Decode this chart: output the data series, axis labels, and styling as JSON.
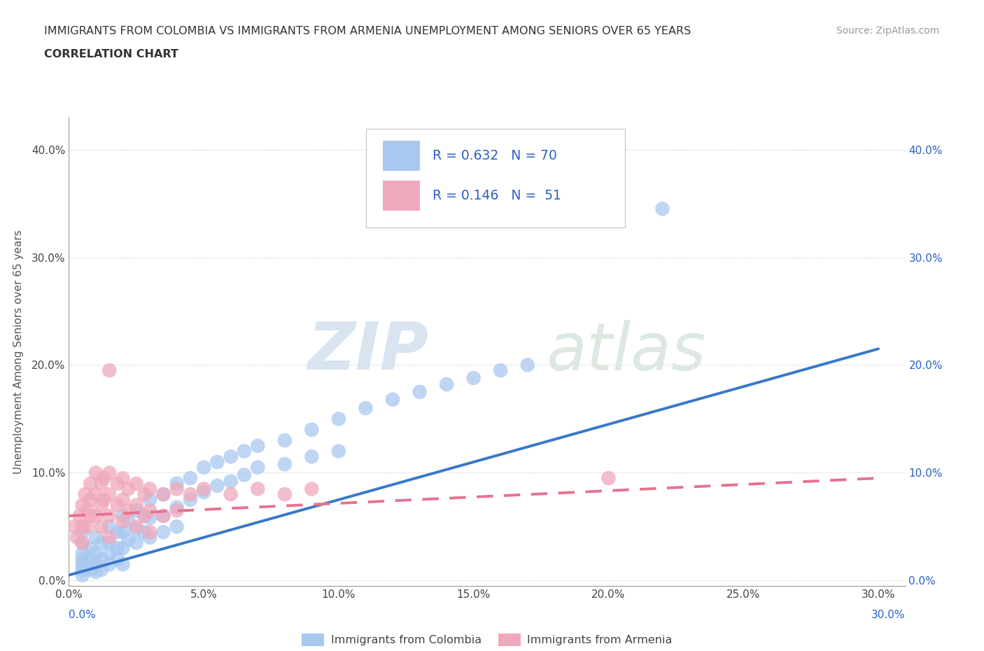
{
  "title_line1": "IMMIGRANTS FROM COLOMBIA VS IMMIGRANTS FROM ARMENIA UNEMPLOYMENT AMONG SENIORS OVER 65 YEARS",
  "title_line2": "CORRELATION CHART",
  "source": "Source: ZipAtlas.com",
  "ylabel": "Unemployment Among Seniors over 65 years",
  "xlim": [
    0.0,
    0.31
  ],
  "ylim": [
    -0.005,
    0.43
  ],
  "xticks": [
    0.0,
    0.05,
    0.1,
    0.15,
    0.2,
    0.25,
    0.3
  ],
  "yticks": [
    0.0,
    0.1,
    0.2,
    0.3,
    0.4
  ],
  "colombia_R": 0.632,
  "colombia_N": 70,
  "armenia_R": 0.146,
  "armenia_N": 51,
  "colombia_color": "#a8c8f0",
  "armenia_color": "#f0a8bc",
  "colombia_line_color": "#3878c8",
  "armenia_line_color": "#e87090",
  "text_color": "#2860c8",
  "watermark_zip": "ZIP",
  "watermark_atlas": "atlas",
  "legend_label_colombia": "Immigrants from Colombia",
  "legend_label_armenia": "Immigrants from Armenia",
  "colombia_scatter": [
    [
      0.005,
      0.045
    ],
    [
      0.005,
      0.035
    ],
    [
      0.005,
      0.025
    ],
    [
      0.005,
      0.02
    ],
    [
      0.005,
      0.015
    ],
    [
      0.005,
      0.01
    ],
    [
      0.005,
      0.005
    ],
    [
      0.008,
      0.03
    ],
    [
      0.008,
      0.02
    ],
    [
      0.008,
      0.01
    ],
    [
      0.01,
      0.04
    ],
    [
      0.01,
      0.025
    ],
    [
      0.01,
      0.015
    ],
    [
      0.01,
      0.008
    ],
    [
      0.012,
      0.035
    ],
    [
      0.012,
      0.02
    ],
    [
      0.012,
      0.01
    ],
    [
      0.015,
      0.05
    ],
    [
      0.015,
      0.035
    ],
    [
      0.015,
      0.025
    ],
    [
      0.015,
      0.015
    ],
    [
      0.018,
      0.045
    ],
    [
      0.018,
      0.03
    ],
    [
      0.018,
      0.02
    ],
    [
      0.02,
      0.06
    ],
    [
      0.02,
      0.045
    ],
    [
      0.02,
      0.03
    ],
    [
      0.02,
      0.015
    ],
    [
      0.022,
      0.055
    ],
    [
      0.022,
      0.038
    ],
    [
      0.025,
      0.065
    ],
    [
      0.025,
      0.048
    ],
    [
      0.025,
      0.035
    ],
    [
      0.028,
      0.06
    ],
    [
      0.028,
      0.045
    ],
    [
      0.03,
      0.075
    ],
    [
      0.03,
      0.058
    ],
    [
      0.03,
      0.04
    ],
    [
      0.035,
      0.08
    ],
    [
      0.035,
      0.06
    ],
    [
      0.035,
      0.045
    ],
    [
      0.04,
      0.09
    ],
    [
      0.04,
      0.068
    ],
    [
      0.04,
      0.05
    ],
    [
      0.045,
      0.095
    ],
    [
      0.045,
      0.075
    ],
    [
      0.05,
      0.105
    ],
    [
      0.05,
      0.082
    ],
    [
      0.055,
      0.11
    ],
    [
      0.055,
      0.088
    ],
    [
      0.06,
      0.115
    ],
    [
      0.06,
      0.092
    ],
    [
      0.065,
      0.12
    ],
    [
      0.065,
      0.098
    ],
    [
      0.07,
      0.125
    ],
    [
      0.07,
      0.105
    ],
    [
      0.08,
      0.13
    ],
    [
      0.08,
      0.108
    ],
    [
      0.09,
      0.14
    ],
    [
      0.09,
      0.115
    ],
    [
      0.1,
      0.15
    ],
    [
      0.1,
      0.12
    ],
    [
      0.11,
      0.16
    ],
    [
      0.12,
      0.168
    ],
    [
      0.13,
      0.175
    ],
    [
      0.14,
      0.182
    ],
    [
      0.15,
      0.188
    ],
    [
      0.16,
      0.195
    ],
    [
      0.17,
      0.2
    ],
    [
      0.22,
      0.345
    ]
  ],
  "armenia_scatter": [
    [
      0.002,
      0.05
    ],
    [
      0.003,
      0.04
    ],
    [
      0.004,
      0.06
    ],
    [
      0.005,
      0.07
    ],
    [
      0.005,
      0.05
    ],
    [
      0.005,
      0.035
    ],
    [
      0.006,
      0.08
    ],
    [
      0.007,
      0.065
    ],
    [
      0.007,
      0.05
    ],
    [
      0.008,
      0.09
    ],
    [
      0.008,
      0.075
    ],
    [
      0.008,
      0.06
    ],
    [
      0.01,
      0.1
    ],
    [
      0.01,
      0.08
    ],
    [
      0.01,
      0.06
    ],
    [
      0.012,
      0.09
    ],
    [
      0.012,
      0.07
    ],
    [
      0.012,
      0.05
    ],
    [
      0.013,
      0.095
    ],
    [
      0.013,
      0.075
    ],
    [
      0.015,
      0.1
    ],
    [
      0.015,
      0.08
    ],
    [
      0.015,
      0.06
    ],
    [
      0.015,
      0.04
    ],
    [
      0.015,
      0.195
    ],
    [
      0.018,
      0.09
    ],
    [
      0.018,
      0.07
    ],
    [
      0.02,
      0.095
    ],
    [
      0.02,
      0.075
    ],
    [
      0.02,
      0.055
    ],
    [
      0.022,
      0.085
    ],
    [
      0.022,
      0.065
    ],
    [
      0.025,
      0.09
    ],
    [
      0.025,
      0.07
    ],
    [
      0.025,
      0.05
    ],
    [
      0.028,
      0.08
    ],
    [
      0.028,
      0.06
    ],
    [
      0.03,
      0.085
    ],
    [
      0.03,
      0.065
    ],
    [
      0.03,
      0.045
    ],
    [
      0.035,
      0.08
    ],
    [
      0.035,
      0.06
    ],
    [
      0.04,
      0.085
    ],
    [
      0.04,
      0.065
    ],
    [
      0.045,
      0.08
    ],
    [
      0.05,
      0.085
    ],
    [
      0.06,
      0.08
    ],
    [
      0.07,
      0.085
    ],
    [
      0.08,
      0.08
    ],
    [
      0.09,
      0.085
    ],
    [
      0.2,
      0.095
    ]
  ],
  "colombia_trend_x": [
    0.0,
    0.3
  ],
  "colombia_trend_y": [
    0.005,
    0.215
  ],
  "armenia_trend_x": [
    0.0,
    0.3
  ],
  "armenia_trend_y": [
    0.06,
    0.095
  ]
}
